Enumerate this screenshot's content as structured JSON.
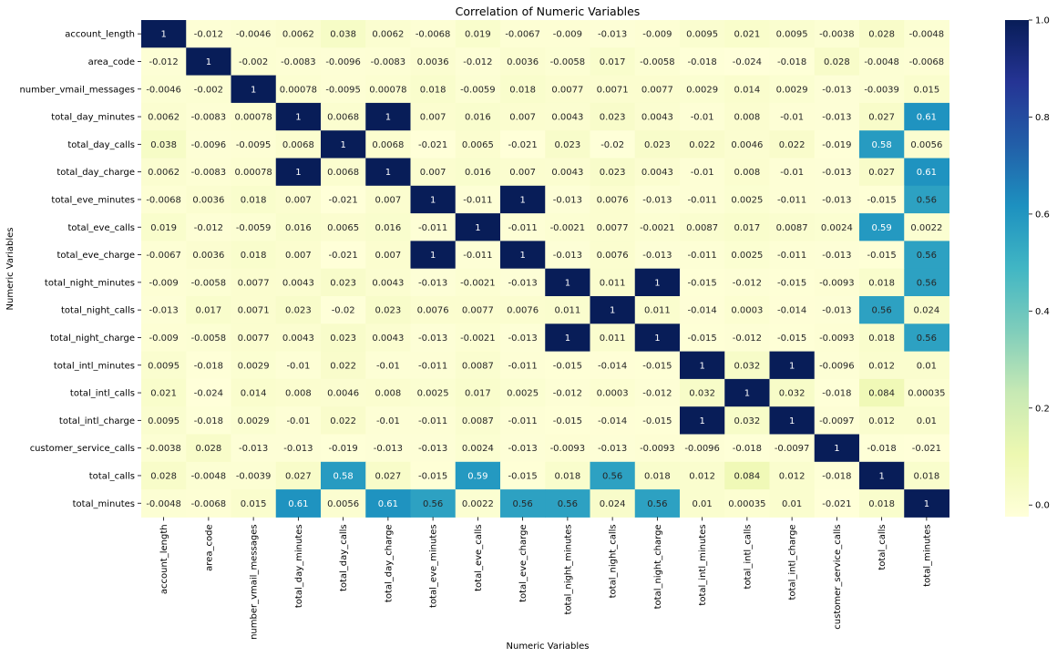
{
  "chart_data": {
    "type": "heatmap",
    "title": "Correlation of Numeric Variables",
    "xlabel": "Numeric Variables",
    "ylabel": "Numeric Variables",
    "variables": [
      "account_length",
      "area_code",
      "number_vmail_messages",
      "total_day_minutes",
      "total_day_calls",
      "total_day_charge",
      "total_eve_minutes",
      "total_eve_calls",
      "total_eve_charge",
      "total_night_minutes",
      "total_night_calls",
      "total_night_charge",
      "total_intl_minutes",
      "total_intl_calls",
      "total_intl_charge",
      "customer_service_calls",
      "total_calls",
      "total_minutes"
    ],
    "values": [
      [
        1,
        -0.012,
        -0.0046,
        0.0062,
        0.038,
        0.0062,
        -0.0068,
        0.019,
        -0.0067,
        -0.009,
        -0.013,
        -0.009,
        0.0095,
        0.021,
        0.0095,
        -0.0038,
        0.028,
        -0.0048
      ],
      [
        -0.012,
        1,
        -0.002,
        -0.0083,
        -0.0096,
        -0.0083,
        0.0036,
        -0.012,
        0.0036,
        -0.0058,
        0.017,
        -0.0058,
        -0.018,
        -0.024,
        -0.018,
        0.028,
        -0.0048,
        -0.0068
      ],
      [
        -0.0046,
        -0.002,
        1,
        0.00078,
        -0.0095,
        0.00078,
        0.018,
        -0.0059,
        0.018,
        0.0077,
        0.0071,
        0.0077,
        0.0029,
        0.014,
        0.0029,
        -0.013,
        -0.0039,
        0.015
      ],
      [
        0.0062,
        -0.0083,
        0.00078,
        1,
        0.0068,
        1,
        0.007,
        0.016,
        0.007,
        0.0043,
        0.023,
        0.0043,
        -0.01,
        0.008,
        -0.01,
        -0.013,
        0.027,
        0.61
      ],
      [
        0.038,
        -0.0096,
        -0.0095,
        0.0068,
        1,
        0.0068,
        -0.021,
        0.0065,
        -0.021,
        0.023,
        -0.02,
        0.023,
        0.022,
        0.0046,
        0.022,
        -0.019,
        0.58,
        0.0056
      ],
      [
        0.0062,
        -0.0083,
        0.00078,
        1,
        0.0068,
        1,
        0.007,
        0.016,
        0.007,
        0.0043,
        0.023,
        0.0043,
        -0.01,
        0.008,
        -0.01,
        -0.013,
        0.027,
        0.61
      ],
      [
        -0.0068,
        0.0036,
        0.018,
        0.007,
        -0.021,
        0.007,
        1,
        -0.011,
        1,
        -0.013,
        0.0076,
        -0.013,
        -0.011,
        0.0025,
        -0.011,
        -0.013,
        -0.015,
        0.56
      ],
      [
        0.019,
        -0.012,
        -0.0059,
        0.016,
        0.0065,
        0.016,
        -0.011,
        1,
        -0.011,
        -0.0021,
        0.0077,
        -0.0021,
        0.0087,
        0.017,
        0.0087,
        0.0024,
        0.59,
        0.0022
      ],
      [
        -0.0067,
        0.0036,
        0.018,
        0.007,
        -0.021,
        0.007,
        1,
        -0.011,
        1,
        -0.013,
        0.0076,
        -0.013,
        -0.011,
        0.0025,
        -0.011,
        -0.013,
        -0.015,
        0.56
      ],
      [
        -0.009,
        -0.0058,
        0.0077,
        0.0043,
        0.023,
        0.0043,
        -0.013,
        -0.0021,
        -0.013,
        1,
        0.011,
        1,
        -0.015,
        -0.012,
        -0.015,
        -0.0093,
        0.018,
        0.56
      ],
      [
        -0.013,
        0.017,
        0.0071,
        0.023,
        -0.02,
        0.023,
        0.0076,
        0.0077,
        0.0076,
        0.011,
        1,
        0.011,
        -0.014,
        0.0003,
        -0.014,
        -0.013,
        0.56,
        0.024
      ],
      [
        -0.009,
        -0.0058,
        0.0077,
        0.0043,
        0.023,
        0.0043,
        -0.013,
        -0.0021,
        -0.013,
        1,
        0.011,
        1,
        -0.015,
        -0.012,
        -0.015,
        -0.0093,
        0.018,
        0.56
      ],
      [
        0.0095,
        -0.018,
        0.0029,
        -0.01,
        0.022,
        -0.01,
        -0.011,
        0.0087,
        -0.011,
        -0.015,
        -0.014,
        -0.015,
        1,
        0.032,
        1,
        -0.0096,
        0.012,
        0.01
      ],
      [
        0.021,
        -0.024,
        0.014,
        0.008,
        0.0046,
        0.008,
        0.0025,
        0.017,
        0.0025,
        -0.012,
        0.0003,
        -0.012,
        0.032,
        1,
        0.032,
        -0.018,
        0.084,
        0.00035
      ],
      [
        0.0095,
        -0.018,
        0.0029,
        -0.01,
        0.022,
        -0.01,
        -0.011,
        0.0087,
        -0.011,
        -0.015,
        -0.014,
        -0.015,
        1,
        0.032,
        1,
        -0.0097,
        0.012,
        0.01
      ],
      [
        -0.0038,
        0.028,
        -0.013,
        -0.013,
        -0.019,
        -0.013,
        -0.013,
        0.0024,
        -0.013,
        -0.0093,
        -0.013,
        -0.0093,
        -0.0096,
        -0.018,
        -0.0097,
        1,
        -0.018,
        -0.021
      ],
      [
        0.028,
        -0.0048,
        -0.0039,
        0.027,
        0.58,
        0.027,
        -0.015,
        0.59,
        -0.015,
        0.018,
        0.56,
        0.018,
        0.012,
        0.084,
        0.012,
        -0.018,
        1,
        0.018
      ],
      [
        -0.0048,
        -0.0068,
        0.015,
        0.61,
        0.0056,
        0.61,
        0.56,
        0.0022,
        0.56,
        0.56,
        0.024,
        0.56,
        0.01,
        0.00035,
        0.01,
        -0.021,
        0.018,
        1
      ]
    ],
    "colormap": "YlGnBu",
    "vmin": -0.024,
    "vmax": 1,
    "colorbar_ticks": [
      "0.0",
      "0.2",
      "0.4",
      "0.6",
      "0.8",
      "1.0"
    ],
    "annotations": true
  }
}
